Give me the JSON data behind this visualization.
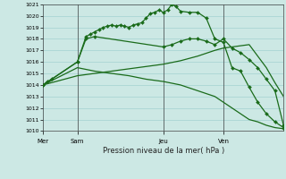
{
  "title": "Pression niveau de la mer( hPa )",
  "bg_color": "#cce8e4",
  "grid_color": "#99cccc",
  "line_color": "#1a6b1a",
  "ylim": [
    1010,
    1021
  ],
  "yticks": [
    1010,
    1011,
    1012,
    1013,
    1014,
    1015,
    1016,
    1017,
    1018,
    1019,
    1020,
    1021
  ],
  "day_labels": [
    "Mer",
    "Sam",
    "Jeu",
    "Ven"
  ],
  "day_positions": [
    0,
    4,
    14,
    21
  ],
  "xlim": [
    0,
    28
  ],
  "series1_x": [
    0,
    0.5,
    1,
    4,
    5,
    5.5,
    6,
    6.5,
    7,
    7.5,
    8,
    8.5,
    9,
    9.5,
    10,
    10.5,
    11,
    11.5,
    12,
    12.5,
    13,
    13.5,
    14,
    14.5,
    15,
    15.5,
    16,
    17,
    18,
    19,
    20,
    21,
    22,
    23,
    24,
    25,
    26,
    27,
    28
  ],
  "series1_y": [
    1014.0,
    1014.3,
    1014.5,
    1016.0,
    1018.2,
    1018.4,
    1018.6,
    1018.8,
    1019.0,
    1019.1,
    1019.2,
    1019.1,
    1019.2,
    1019.1,
    1019.0,
    1019.2,
    1019.3,
    1019.4,
    1019.8,
    1020.2,
    1020.3,
    1020.5,
    1020.3,
    1020.5,
    1021.0,
    1020.8,
    1020.4,
    1020.3,
    1020.3,
    1019.8,
    1018.0,
    1017.7,
    1015.5,
    1015.2,
    1013.8,
    1012.5,
    1011.5,
    1010.8,
    1010.3
  ],
  "series2_x": [
    0,
    4,
    5,
    6,
    14,
    15,
    16,
    17,
    18,
    19,
    20,
    21,
    22,
    23,
    24,
    25,
    26,
    27,
    28
  ],
  "series2_y": [
    1014.0,
    1016.0,
    1018.0,
    1018.2,
    1017.3,
    1017.5,
    1017.8,
    1018.0,
    1018.0,
    1017.8,
    1017.5,
    1018.0,
    1017.2,
    1016.8,
    1016.2,
    1015.5,
    1014.5,
    1013.5,
    1010.5
  ],
  "series3_x": [
    0,
    4,
    6,
    8,
    10,
    12,
    14,
    16,
    18,
    20,
    21,
    22,
    23,
    24,
    25,
    26,
    27,
    28
  ],
  "series3_y": [
    1014.0,
    1014.8,
    1015.0,
    1015.2,
    1015.4,
    1015.6,
    1015.8,
    1016.1,
    1016.5,
    1017.0,
    1017.2,
    1017.3,
    1017.4,
    1017.5,
    1016.5,
    1015.5,
    1014.2,
    1013.0
  ],
  "series4_x": [
    0,
    4,
    6,
    8,
    10,
    12,
    14,
    16,
    18,
    20,
    21,
    22,
    23,
    24,
    25,
    26,
    27,
    28
  ],
  "series4_y": [
    1014.0,
    1015.5,
    1015.2,
    1015.0,
    1014.8,
    1014.5,
    1014.3,
    1014.0,
    1013.5,
    1013.0,
    1012.5,
    1012.0,
    1011.5,
    1011.0,
    1010.8,
    1010.5,
    1010.3,
    1010.2
  ]
}
